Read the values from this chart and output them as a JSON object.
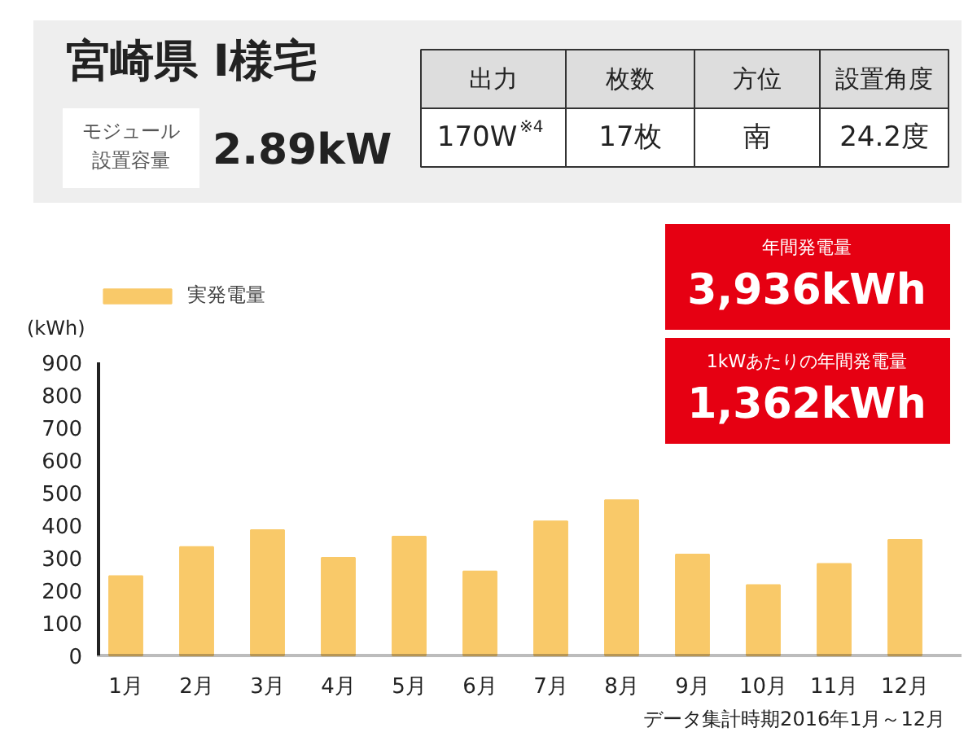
{
  "chart_data": {
    "type": "bar",
    "title": "宮崎県 I様宅",
    "ylabel": "(kWh)",
    "categories": [
      "1月",
      "2月",
      "3月",
      "4月",
      "5月",
      "6月",
      "7月",
      "8月",
      "9月",
      "10月",
      "11月",
      "12月"
    ],
    "series": [
      {
        "name": "実発電量",
        "color": "#f9c969",
        "values": [
          244,
          333,
          385,
          300,
          365,
          258,
          412,
          477,
          310,
          216,
          281,
          355
        ]
      }
    ],
    "ylim": [
      0,
      900
    ],
    "yticks": [
      0,
      100,
      200,
      300,
      400,
      500,
      600,
      700,
      800,
      900
    ],
    "grid": false,
    "legend": "top left",
    "annotations": [
      "モジュール",
      "設置容量",
      "2.89kW",
      "出力",
      "枚数",
      "方位",
      "設置角度",
      "170W$^{※4}$",
      "17枚",
      "南",
      "24.2度",
      "年間発電量",
      "3,936kWh",
      "1kWあたりの年間発電量",
      "1,362kWh",
      "データ集計時期2016年1月～12月"
    ]
  }
}
